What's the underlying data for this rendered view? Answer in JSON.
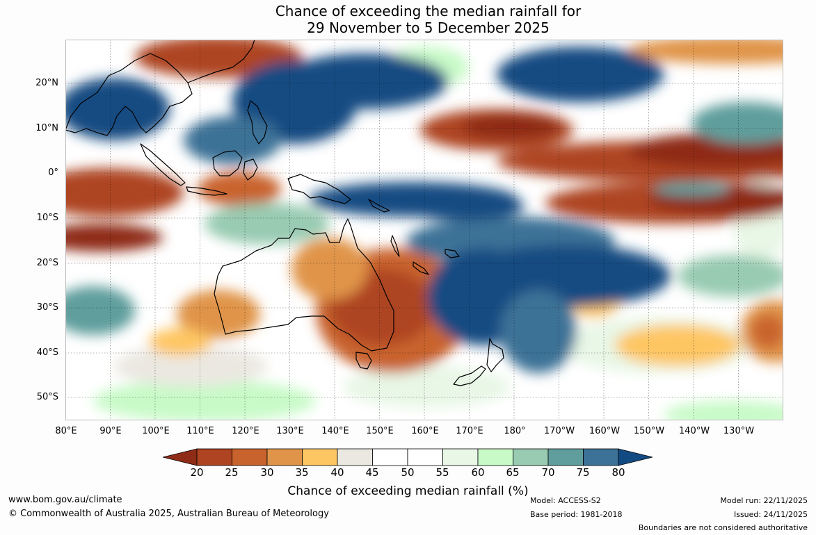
{
  "title": {
    "line1": "Chance of exceeding the median rainfall for",
    "line2": "29 November to 5 December 2025"
  },
  "map": {
    "lat_range": [
      -55,
      30
    ],
    "lon_range_east": [
      80,
      240
    ],
    "lat_labels": [
      "20°N",
      "10°N",
      "0°",
      "10°S",
      "20°S",
      "30°S",
      "40°S",
      "50°S"
    ],
    "lon_labels": [
      "80°E",
      "90°E",
      "100°E",
      "110°E",
      "120°E",
      "130°E",
      "140°E",
      "150°E",
      "160°E",
      "170°E",
      "180°",
      "170°W",
      "160°W",
      "150°W",
      "140°W",
      "130°W"
    ]
  },
  "colorbar": {
    "ticks": [
      "20",
      "25",
      "30",
      "35",
      "40",
      "45",
      "50",
      "55",
      "60",
      "65",
      "70",
      "75",
      "80"
    ],
    "colors": [
      "#8e2c17",
      "#ae4422",
      "#c9632d",
      "#e0944a",
      "#fec663",
      "#ebe8e1",
      "#ffffff",
      "#ffffff",
      "#e8f7e6",
      "#c8fac8",
      "#98cbb1",
      "#5f9e9c",
      "#3c7297",
      "#124b82"
    ],
    "label": "Chance of exceeding median rainfall (%)"
  },
  "footer": {
    "website": "www.bom.gov.au/climate",
    "copyright": "© Commonwealth of Australia 2025, Australian Bureau of Meteorology",
    "model": "Model: ACCESS-S2",
    "base_period": "Base period: 1981-2018",
    "model_run": "Model run: 22/11/2025",
    "issued": "Issued: 24/11/2025",
    "disclaimer": "Boundaries are not considered authoritative"
  }
}
